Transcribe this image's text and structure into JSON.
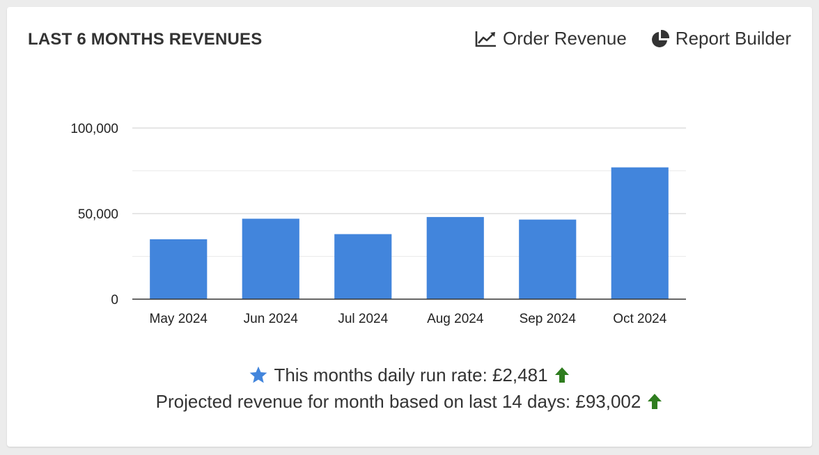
{
  "header": {
    "title": "LAST 6 MONTHS REVENUES",
    "actions": [
      {
        "label": "Order Revenue",
        "icon": "line-chart-icon"
      },
      {
        "label": "Report Builder",
        "icon": "pie-chart-icon"
      }
    ]
  },
  "chart_data": {
    "type": "bar",
    "title": "",
    "xlabel": "",
    "ylabel": "",
    "categories": [
      "May 2024",
      "Jun 2024",
      "Jul 2024",
      "Aug 2024",
      "Sep 2024",
      "Oct 2024"
    ],
    "values": [
      35000,
      47000,
      38000,
      48000,
      46500,
      77000
    ],
    "ylim": [
      0,
      100000
    ],
    "yticks": [
      0,
      50000,
      100000
    ],
    "ytick_labels": [
      "0",
      "50,000",
      "100,000"
    ],
    "grid": true,
    "bar_color": "#4285dc"
  },
  "stats": {
    "run_rate_text": "This months daily run rate: £2,481",
    "projected_text": "Projected revenue for month based on last 14 days: £93,002"
  },
  "colors": {
    "accent": "#4285dc",
    "up_arrow": "#2f7d1f",
    "text": "#333333"
  }
}
